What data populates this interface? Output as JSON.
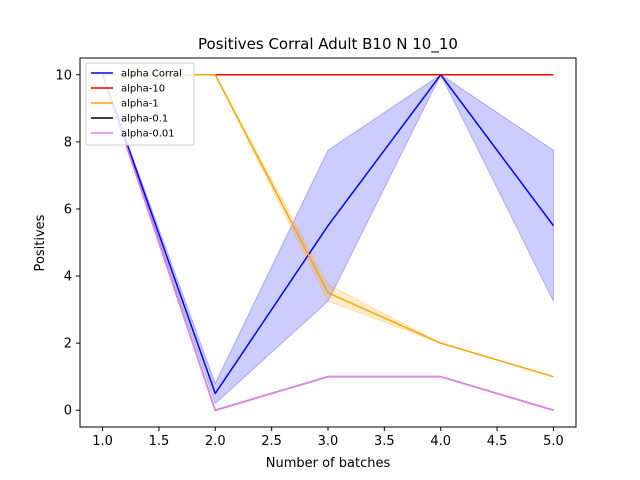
{
  "chart_data": {
    "type": "line",
    "title": "Positives Corral Adult B10 N 10_10",
    "xlabel": "Number of batches",
    "ylabel": "Positives",
    "xlim": [
      0.8,
      5.2
    ],
    "ylim": [
      -0.5,
      10.5
    ],
    "xticks": [
      "1.0",
      "1.5",
      "2.0",
      "2.5",
      "3.0",
      "3.5",
      "4.0",
      "4.5",
      "5.0"
    ],
    "yticks": [
      "0",
      "2",
      "4",
      "6",
      "8",
      "10"
    ],
    "legend_position": "top-left",
    "grid": false,
    "x": [
      1,
      2,
      3,
      4,
      5
    ],
    "series": [
      {
        "name": "alpha Corral",
        "color": "#0000ff",
        "values": [
          10,
          0.5,
          5.5,
          10,
          5.5
        ],
        "band_lower": [
          10,
          0.2,
          3.25,
          10,
          3.25
        ],
        "band_upper": [
          10,
          0.8,
          7.75,
          10,
          7.75
        ],
        "band_color": "#0000ff"
      },
      {
        "name": "alpha-10",
        "color": "#ff0000",
        "values": [
          10,
          10,
          10,
          10,
          10
        ]
      },
      {
        "name": "alpha-1",
        "color": "#ffa500",
        "values": [
          10,
          10,
          3.5,
          2,
          1
        ],
        "band_lower": [
          10,
          10,
          3.25,
          2,
          1
        ],
        "band_upper": [
          10,
          10,
          3.75,
          2,
          1
        ],
        "band_color": "#ffa500"
      },
      {
        "name": "alpha-0.1",
        "color": "#000000",
        "values": [
          10,
          0,
          1,
          1,
          0
        ]
      },
      {
        "name": "alpha-0.01",
        "color": "#ee82ee",
        "values": [
          10,
          0,
          1,
          1,
          0
        ]
      }
    ]
  }
}
